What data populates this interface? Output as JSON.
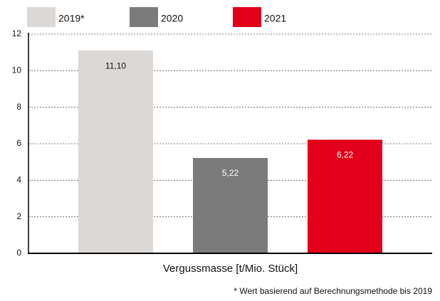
{
  "chart_data": {
    "type": "bar",
    "categories": [
      "Vergussmasse [t/Mio. Stück]"
    ],
    "series": [
      {
        "name": "2019*",
        "color": "#dcd8d5",
        "values": [
          11.1
        ],
        "value_labels": [
          "11,10"
        ]
      },
      {
        "name": "2020",
        "color": "#7b7b7b",
        "values": [
          5.22
        ],
        "value_labels": [
          "5,22"
        ]
      },
      {
        "name": "2021",
        "color": "#e2001a",
        "values": [
          6.22
        ],
        "value_labels": [
          "6,22"
        ]
      }
    ],
    "ylim": [
      0,
      12
    ],
    "yticks": [
      0,
      2,
      4,
      6,
      8,
      10,
      12
    ],
    "grid": true,
    "legend": "top",
    "annotations": [
      "* Wert basierend auf Berechnungsmethode bis 2019"
    ]
  }
}
